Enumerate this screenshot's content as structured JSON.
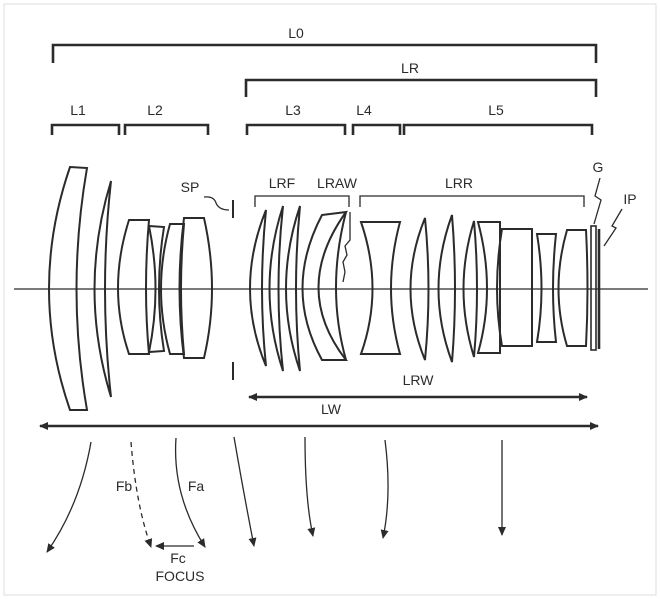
{
  "labels": {
    "L0": "L0",
    "LR": "LR",
    "L1": "L1",
    "L2": "L2",
    "L3": "L3",
    "L4": "L4",
    "L5": "L5",
    "SP": "SP",
    "LRF": "LRF",
    "LRAW": "LRAW",
    "LRR": "LRR",
    "G": "G",
    "IP": "IP",
    "LRW": "LRW",
    "LW": "LW",
    "Fb": "Fb",
    "Fa": "Fa",
    "Fc": "Fc",
    "FOCUS": "FOCUS"
  }
}
